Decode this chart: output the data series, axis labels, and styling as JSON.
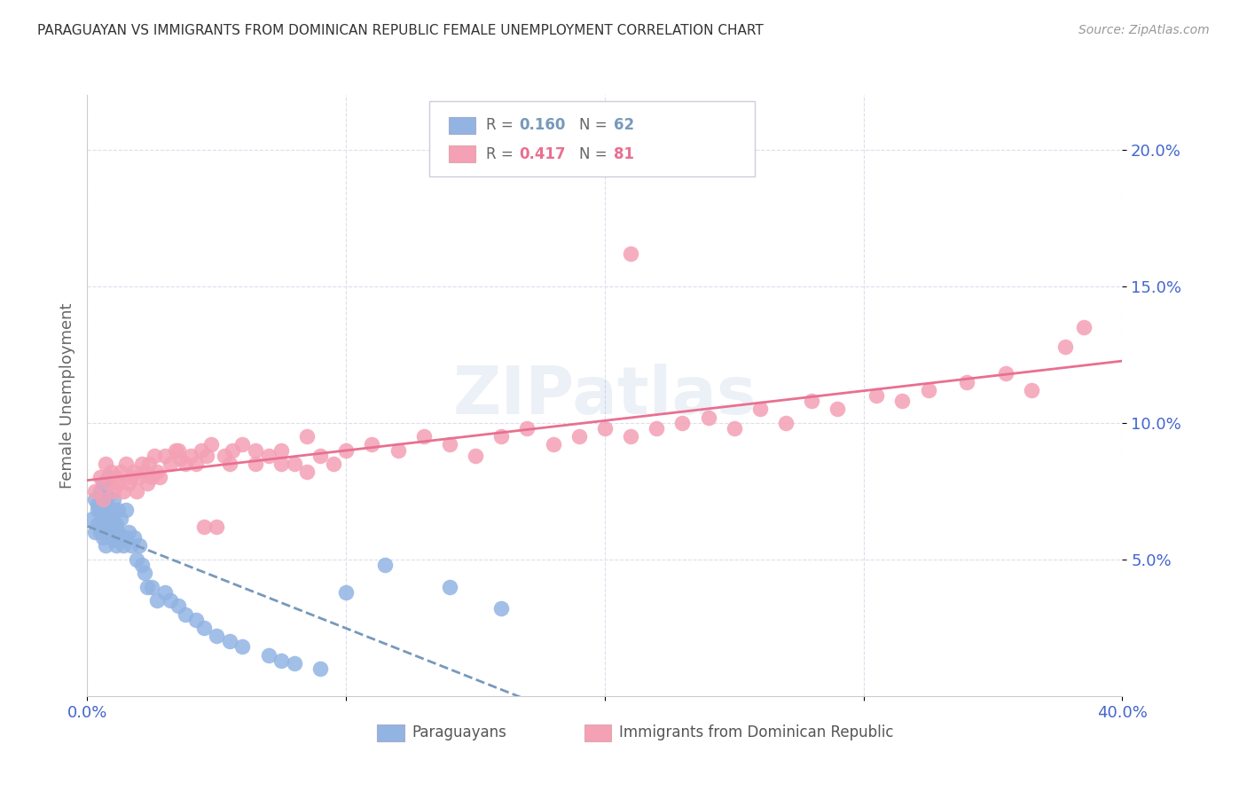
{
  "title": "PARAGUAYAN VS IMMIGRANTS FROM DOMINICAN REPUBLIC FEMALE UNEMPLOYMENT CORRELATION CHART",
  "source": "Source: ZipAtlas.com",
  "ylabel": "Female Unemployment",
  "xlim": [
    0.0,
    0.4
  ],
  "ylim": [
    0.0,
    0.22
  ],
  "yticks": [
    0.05,
    0.1,
    0.15,
    0.2
  ],
  "ytick_labels": [
    "5.0%",
    "10.0%",
    "15.0%",
    "20.0%"
  ],
  "xticks": [
    0.0,
    0.1,
    0.2,
    0.3,
    0.4
  ],
  "xtick_labels": [
    "0.0%",
    "",
    "",
    "",
    "40.0%"
  ],
  "legend_r1": "0.160",
  "legend_n1": "62",
  "legend_r2": "0.417",
  "legend_n2": "81",
  "label1": "Paraguayans",
  "label2": "Immigrants from Dominican Republic",
  "color1": "#92b4e3",
  "color2": "#f4a0b5",
  "trendline1_color": "#7799bb",
  "trendline2_color": "#e87090",
  "axis_color": "#4466cc",
  "grid_color": "#ddddee",
  "watermark": "ZIPatlas",
  "blue_scatter_x": [
    0.002,
    0.003,
    0.003,
    0.004,
    0.004,
    0.004,
    0.005,
    0.005,
    0.005,
    0.006,
    0.006,
    0.006,
    0.006,
    0.007,
    0.007,
    0.007,
    0.008,
    0.008,
    0.008,
    0.008,
    0.009,
    0.009,
    0.01,
    0.01,
    0.01,
    0.01,
    0.011,
    0.011,
    0.012,
    0.012,
    0.013,
    0.013,
    0.014,
    0.015,
    0.015,
    0.016,
    0.017,
    0.018,
    0.019,
    0.02,
    0.021,
    0.022,
    0.023,
    0.025,
    0.027,
    0.03,
    0.032,
    0.035,
    0.038,
    0.042,
    0.045,
    0.05,
    0.055,
    0.06,
    0.07,
    0.075,
    0.08,
    0.09,
    0.1,
    0.115,
    0.14,
    0.16
  ],
  "blue_scatter_y": [
    0.065,
    0.072,
    0.06,
    0.068,
    0.063,
    0.07,
    0.075,
    0.06,
    0.068,
    0.072,
    0.058,
    0.065,
    0.078,
    0.055,
    0.062,
    0.07,
    0.06,
    0.067,
    0.073,
    0.08,
    0.058,
    0.065,
    0.062,
    0.068,
    0.072,
    0.057,
    0.055,
    0.063,
    0.06,
    0.068,
    0.058,
    0.065,
    0.055,
    0.058,
    0.068,
    0.06,
    0.055,
    0.058,
    0.05,
    0.055,
    0.048,
    0.045,
    0.04,
    0.04,
    0.035,
    0.038,
    0.035,
    0.033,
    0.03,
    0.028,
    0.025,
    0.022,
    0.02,
    0.018,
    0.015,
    0.013,
    0.012,
    0.01,
    0.038,
    0.048,
    0.04,
    0.032
  ],
  "pink_scatter_x": [
    0.003,
    0.005,
    0.006,
    0.007,
    0.008,
    0.009,
    0.01,
    0.011,
    0.012,
    0.013,
    0.014,
    0.015,
    0.016,
    0.017,
    0.018,
    0.019,
    0.02,
    0.021,
    0.022,
    0.023,
    0.024,
    0.025,
    0.026,
    0.027,
    0.028,
    0.03,
    0.032,
    0.034,
    0.036,
    0.038,
    0.04,
    0.042,
    0.044,
    0.046,
    0.048,
    0.05,
    0.053,
    0.056,
    0.06,
    0.065,
    0.07,
    0.075,
    0.08,
    0.085,
    0.09,
    0.095,
    0.1,
    0.11,
    0.12,
    0.13,
    0.14,
    0.15,
    0.16,
    0.17,
    0.18,
    0.19,
    0.2,
    0.21,
    0.22,
    0.23,
    0.24,
    0.25,
    0.26,
    0.27,
    0.28,
    0.29,
    0.305,
    0.315,
    0.325,
    0.34,
    0.355,
    0.365,
    0.378,
    0.385,
    0.035,
    0.045,
    0.055,
    0.065,
    0.075,
    0.085,
    0.21
  ],
  "pink_scatter_y": [
    0.075,
    0.08,
    0.072,
    0.085,
    0.078,
    0.082,
    0.075,
    0.08,
    0.078,
    0.082,
    0.075,
    0.085,
    0.078,
    0.08,
    0.082,
    0.075,
    0.08,
    0.085,
    0.082,
    0.078,
    0.085,
    0.08,
    0.088,
    0.082,
    0.08,
    0.088,
    0.085,
    0.09,
    0.087,
    0.085,
    0.088,
    0.085,
    0.09,
    0.088,
    0.092,
    0.062,
    0.088,
    0.09,
    0.092,
    0.085,
    0.088,
    0.09,
    0.085,
    0.082,
    0.088,
    0.085,
    0.09,
    0.092,
    0.09,
    0.095,
    0.092,
    0.088,
    0.095,
    0.098,
    0.092,
    0.095,
    0.098,
    0.095,
    0.098,
    0.1,
    0.102,
    0.098,
    0.105,
    0.1,
    0.108,
    0.105,
    0.11,
    0.108,
    0.112,
    0.115,
    0.118,
    0.112,
    0.128,
    0.135,
    0.09,
    0.062,
    0.085,
    0.09,
    0.085,
    0.095,
    0.162
  ]
}
